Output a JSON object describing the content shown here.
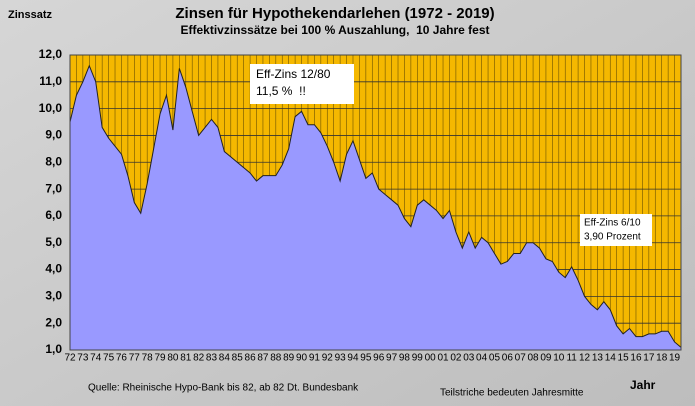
{
  "chart_data": {
    "type": "area",
    "title": "Zinsen für Hypothekendarlehen (1972 - 2019)",
    "subtitle": "Effektivzinssätze bei 100 % Auszahlung,  10 Jahre fest",
    "y_label": "Zinssatz",
    "x_label": "Jahr",
    "source": "Quelle: Rheinische Hypo-Bank bis 82, ab 82 Dt. Bundesbank",
    "note": "Teilstriche bedeuten Jahresmitte",
    "annotations": [
      {
        "lines": [
          "Eff-Zins 12/80",
          "11,5 %  !!"
        ]
      },
      {
        "lines": [
          "Eff-Zins 6/10",
          "3,90 Prozent"
        ]
      }
    ],
    "categories": [
      "72",
      null,
      "73",
      null,
      "74",
      null,
      "75",
      null,
      "76",
      null,
      "77",
      null,
      "78",
      null,
      "79",
      null,
      "80",
      null,
      "81",
      null,
      "82",
      null,
      "83",
      null,
      "84",
      null,
      "85",
      null,
      "86",
      null,
      "87",
      null,
      "88",
      null,
      "89",
      null,
      "90",
      null,
      "91",
      null,
      "92",
      null,
      "93",
      null,
      "94",
      null,
      "95",
      null,
      "96",
      null,
      "97",
      null,
      "98",
      null,
      "99",
      null,
      "00",
      null,
      "01",
      null,
      "02",
      null,
      "03",
      null,
      "04",
      null,
      "05",
      null,
      "06",
      null,
      "07",
      null,
      "08",
      null,
      "09",
      null,
      "10",
      null,
      "11",
      null,
      "12",
      null,
      "13",
      null,
      "14",
      null,
      "15",
      null,
      "16",
      null,
      "17",
      null,
      "18",
      null,
      "19",
      null
    ],
    "values": [
      9.5,
      10.5,
      11.0,
      11.6,
      11.0,
      9.3,
      8.9,
      8.6,
      8.3,
      7.5,
      6.5,
      6.1,
      7.2,
      8.5,
      9.8,
      10.5,
      9.2,
      11.5,
      10.8,
      9.9,
      9.0,
      9.3,
      9.6,
      9.3,
      8.4,
      8.2,
      8.0,
      7.8,
      7.6,
      7.3,
      7.5,
      7.5,
      7.5,
      7.9,
      8.5,
      9.7,
      9.9,
      9.4,
      9.4,
      9.1,
      8.6,
      8.0,
      7.3,
      8.3,
      8.8,
      8.1,
      7.4,
      7.6,
      7.0,
      6.8,
      6.6,
      6.4,
      5.9,
      5.6,
      6.4,
      6.6,
      6.4,
      6.2,
      5.9,
      6.2,
      5.4,
      4.8,
      5.4,
      4.8,
      5.2,
      5.0,
      4.6,
      4.2,
      4.3,
      4.6,
      4.6,
      5.0,
      5.0,
      4.8,
      4.4,
      4.3,
      3.9,
      3.7,
      4.1,
      3.6,
      3.0,
      2.7,
      2.5,
      2.8,
      2.5,
      1.9,
      1.6,
      1.8,
      1.5,
      1.5,
      1.6,
      1.6,
      1.7,
      1.7,
      1.3,
      1.1
    ],
    "color": "#9999ff",
    "plot_background": "#f5b800",
    "ylim": [
      1.0,
      12.0
    ],
    "yticks": [
      {
        "value": 1.0,
        "label": "1,0"
      },
      {
        "value": 2.0,
        "label": "2,0"
      },
      {
        "value": 3.0,
        "label": "3,0"
      },
      {
        "value": 4.0,
        "label": "4,0"
      },
      {
        "value": 5.0,
        "label": "5,0"
      },
      {
        "value": 6.0,
        "label": "6,0"
      },
      {
        "value": 7.0,
        "label": "7,0"
      },
      {
        "value": 8.0,
        "label": "8,0"
      },
      {
        "value": 9.0,
        "label": "9,0"
      },
      {
        "value": 10.0,
        "label": "10,0"
      },
      {
        "value": 11.0,
        "label": "11,0"
      },
      {
        "value": 12.0,
        "label": "12,0"
      }
    ],
    "grid": true
  }
}
